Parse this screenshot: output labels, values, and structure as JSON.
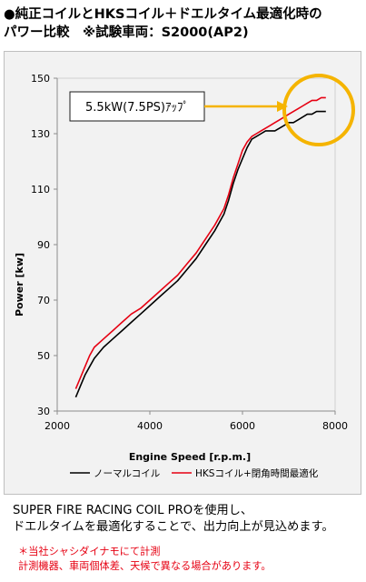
{
  "header": {
    "title_line1": "●純正コイルとHKSコイル＋ドエルタイム最適化時の",
    "title_line2": "パワー比較　※試験車両：S2000(AP2)"
  },
  "chart_data": {
    "type": "line",
    "xlabel": "Engine Speed [r.p.m.]",
    "ylabel": "Power [kw]",
    "xlim": [
      2000,
      8000
    ],
    "ylim": [
      30,
      150
    ],
    "xticks": [
      "2000",
      "4000",
      "6000",
      "8000"
    ],
    "yticks": [
      "30",
      "50",
      "70",
      "90",
      "110",
      "130",
      "150"
    ],
    "grid": false,
    "legend_position": "bottom",
    "series": [
      {
        "name": "ノーマルコイル",
        "color": "#000000",
        "x": [
          2400,
          2500,
          2600,
          2700,
          2800,
          3000,
          3200,
          3400,
          3600,
          3800,
          4000,
          4200,
          4400,
          4600,
          4800,
          5000,
          5200,
          5400,
          5600,
          5700,
          5800,
          5900,
          6000,
          6100,
          6200,
          6300,
          6400,
          6500,
          6600,
          6700,
          6800,
          6900,
          7000,
          7100,
          7200,
          7300,
          7400,
          7500,
          7600,
          7700,
          7800
        ],
        "y": [
          35,
          39,
          43,
          46,
          49,
          53,
          56,
          59,
          62,
          65,
          68,
          71,
          74,
          77,
          81,
          85,
          90,
          95,
          101,
          106,
          112,
          117,
          121,
          125,
          128,
          129,
          130,
          131,
          131,
          131,
          132,
          133,
          134,
          134,
          135,
          136,
          137,
          137,
          138,
          138,
          138
        ]
      },
      {
        "name": "HKSコイル+閉角時間最適化",
        "color": "#e60012",
        "x": [
          2400,
          2500,
          2600,
          2700,
          2800,
          3000,
          3200,
          3400,
          3600,
          3800,
          4000,
          4200,
          4400,
          4600,
          4800,
          5000,
          5200,
          5400,
          5600,
          5700,
          5800,
          5900,
          6000,
          6100,
          6200,
          6300,
          6400,
          6500,
          6600,
          6700,
          6800,
          6900,
          7000,
          7100,
          7200,
          7300,
          7400,
          7500,
          7600,
          7700,
          7800
        ],
        "y": [
          38,
          42,
          46,
          50,
          53,
          56,
          59,
          62,
          65,
          67,
          70,
          73,
          76,
          79,
          83,
          87,
          92,
          97,
          103,
          108,
          114,
          119,
          124,
          127,
          129,
          130,
          131,
          132,
          133,
          134,
          135,
          136,
          137,
          138,
          139,
          140,
          141,
          142,
          142,
          143,
          143
        ]
      }
    ],
    "annotation": {
      "text": "5.5kW(7.5PS)ｱｯﾌﾟ",
      "arrow_color": "#f5b400",
      "circle_color": "#f5b400"
    }
  },
  "footer": {
    "line1": "SUPER FIRE RACING COIL PROを使用し、",
    "line2": "ドエルタイムを最適化することで、出力向上が見込めます。"
  },
  "notes": {
    "line1": "＊当社シャシダイナモにて計測",
    "line2": "計測機器、車両個体差、天候で異なる場合があります。"
  }
}
